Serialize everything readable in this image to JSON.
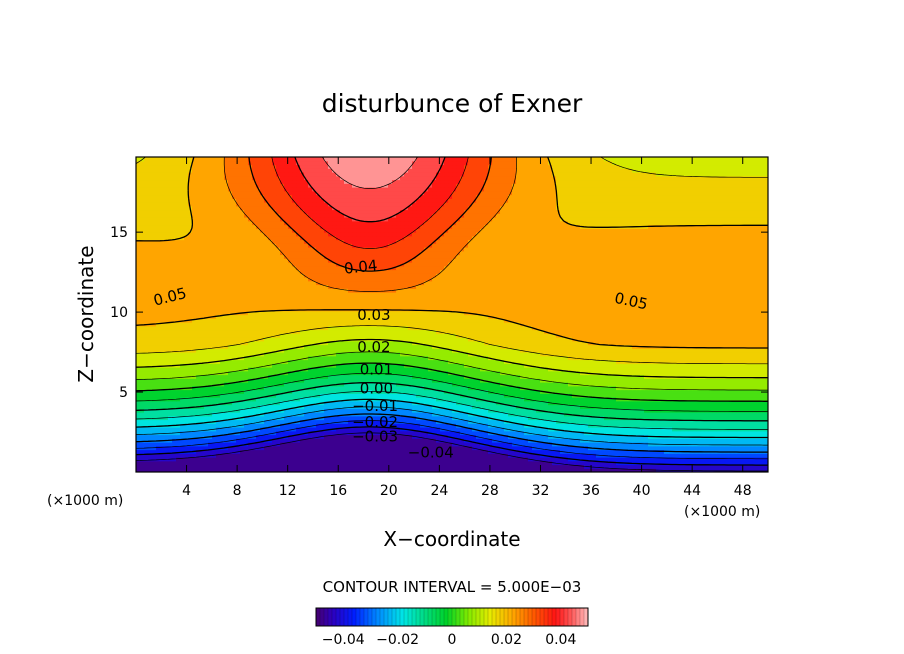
{
  "chart_data": {
    "type": "contour",
    "title": "disturbunce of Exner",
    "xlabel": "X−coordinate",
    "ylabel": "Z−coordinate",
    "x_unit": "(×1000 m)",
    "z_unit": "(×1000 m)",
    "xlim": [
      0,
      50
    ],
    "ylim": [
      0,
      19.7
    ],
    "x_ticks": [
      {
        "value": 4,
        "label": "4"
      },
      {
        "value": 8,
        "label": "8"
      },
      {
        "value": 12,
        "label": "12"
      },
      {
        "value": 16,
        "label": "16"
      },
      {
        "value": 20,
        "label": "20"
      },
      {
        "value": 24,
        "label": "24"
      },
      {
        "value": 28,
        "label": "28"
      },
      {
        "value": 32,
        "label": "32"
      },
      {
        "value": 36,
        "label": "36"
      },
      {
        "value": 40,
        "label": "40"
      },
      {
        "value": 44,
        "label": "44"
      },
      {
        "value": 48,
        "label": "48"
      }
    ],
    "y_ticks": [
      {
        "value": 5,
        "label": "5"
      },
      {
        "value": 10,
        "label": "10"
      },
      {
        "value": 15,
        "label": "15"
      }
    ],
    "contour_interval_text": "CONTOUR INTERVAL = 5.000E−03",
    "contour_interval": 0.005,
    "value_range": [
      -0.05,
      0.05
    ],
    "contour_labels": [
      {
        "text": "0.05",
        "x": 1.5,
        "z": 10.4,
        "angle": -14
      },
      {
        "text": "0.05",
        "x": 37.8,
        "z": 10.6,
        "angle": 12
      },
      {
        "text": "0.04",
        "x": 16.5,
        "z": 12.4,
        "angle": -6
      },
      {
        "text": "0.03",
        "x": 17.5,
        "z": 9.5,
        "angle": 0
      },
      {
        "text": "0.02",
        "x": 17.5,
        "z": 7.5,
        "angle": 0
      },
      {
        "text": "0.01",
        "x": 17.7,
        "z": 6.1,
        "angle": 0
      },
      {
        "text": "0.00",
        "x": 17.7,
        "z": 4.9,
        "angle": 0
      },
      {
        "text": "−0.01",
        "x": 17.1,
        "z": 3.8,
        "angle": 0
      },
      {
        "text": "−0.02",
        "x": 17.1,
        "z": 2.8,
        "angle": 0
      },
      {
        "text": "−0.03",
        "x": 17.1,
        "z": 1.9,
        "angle": 0
      },
      {
        "text": "−0.04",
        "x": 21.5,
        "z": 0.9,
        "angle": 0
      }
    ],
    "colorbar": {
      "ticks": [
        {
          "value": -0.04,
          "label": "−0.04"
        },
        {
          "value": -0.02,
          "label": "−0.02"
        },
        {
          "value": 0,
          "label": "0"
        },
        {
          "value": 0.02,
          "label": "0.02"
        },
        {
          "value": 0.04,
          "label": "0.04"
        }
      ]
    }
  }
}
